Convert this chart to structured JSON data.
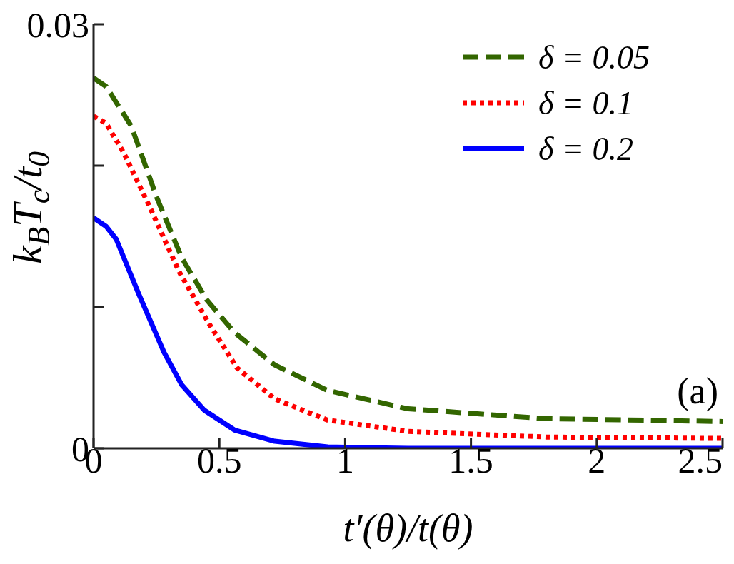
{
  "chart_data": {
    "type": "line",
    "xlabel": "t′(θ)/t(θ)",
    "ylabel": "k$_{B}$T$_{c}$/t$_{0}$",
    "annotations": [
      "(a)"
    ],
    "xlim": [
      0,
      2.5
    ],
    "xticks": [
      0,
      0.5,
      1,
      1.5,
      2,
      2.5
    ],
    "ylim": [
      0,
      0.03
    ],
    "yticks": [
      0,
      {
        "value": 0.01,
        "label": null
      },
      {
        "value": 0.02,
        "label": null
      },
      0.03
    ],
    "grid": false,
    "legend": "top right",
    "marker": "none",
    "series": [
      {
        "name": "δ = 0.05",
        "color": "#336600",
        "line_style": "dashed",
        "x": [
          0,
          0.05,
          0.15,
          0.25,
          0.35,
          0.45,
          0.56,
          0.72,
          0.93,
          1.25,
          1.8,
          2.5
        ],
        "values": [
          0.0262,
          0.0256,
          0.0228,
          0.0178,
          0.0135,
          0.0105,
          0.0082,
          0.0059,
          0.0041,
          0.0028,
          0.0021,
          0.0019
        ]
      },
      {
        "name": "δ = 0.1",
        "color": "#ff0000",
        "line_style": "dotted",
        "x": [
          0,
          0.05,
          0.12,
          0.22,
          0.34,
          0.46,
          0.57,
          0.72,
          0.93,
          1.09,
          1.25,
          1.8,
          2.5
        ],
        "values": [
          0.0235,
          0.023,
          0.0209,
          0.0172,
          0.0125,
          0.0088,
          0.0057,
          0.0035,
          0.002,
          0.0016,
          0.0012,
          0.0008,
          0.0007
        ]
      },
      {
        "name": "δ = 0.2",
        "color": "#0000ff",
        "line_style": "solid",
        "x": [
          0,
          0.05,
          0.09,
          0.18,
          0.28,
          0.35,
          0.44,
          0.56,
          0.72,
          0.93,
          1.25,
          2.5
        ],
        "values": [
          0.0163,
          0.0157,
          0.0148,
          0.0109,
          0.0068,
          0.0045,
          0.0027,
          0.0013,
          0.0005,
          0.0001,
          0,
          0
        ]
      }
    ]
  }
}
